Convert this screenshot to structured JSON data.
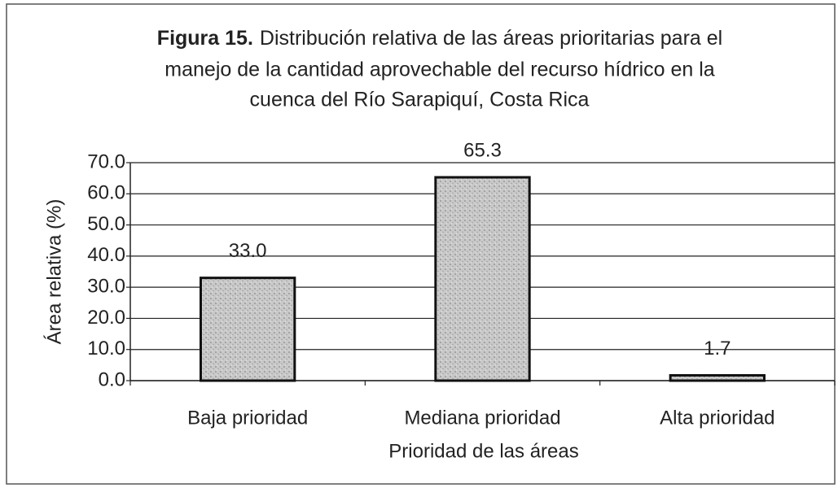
{
  "chart_data": {
    "type": "bar",
    "title": {
      "label": "Figura 15.",
      "lines": [
        "Distribución relativa de las áreas prioritarias para el",
        "manejo de la cantidad aprovechable del recurso hídrico en la",
        "cuenca del Río Sarapiquí, Costa Rica"
      ]
    },
    "x_label": "Prioridad de las áreas",
    "y_label": "Área relativa (%)",
    "categories": [
      "Baja prioridad",
      "Mediana prioridad",
      "Alta prioridad"
    ],
    "values": [
      33.0,
      65.3,
      1.7
    ],
    "value_labels": [
      "33.0",
      "65.3",
      "1.7"
    ],
    "color": "#c4c4c4",
    "ylim": [
      0,
      70
    ],
    "yticks": [
      {
        "value": 0,
        "label": "0.0"
      },
      {
        "value": 10,
        "label": "10.0"
      },
      {
        "value": 20,
        "label": "20.0"
      },
      {
        "value": 30,
        "label": "30.0"
      },
      {
        "value": 40,
        "label": "40.0"
      },
      {
        "value": 50,
        "label": "50.0"
      },
      {
        "value": 60,
        "label": "60.0"
      },
      {
        "value": 70,
        "label": "70.0"
      }
    ],
    "grid": true
  }
}
